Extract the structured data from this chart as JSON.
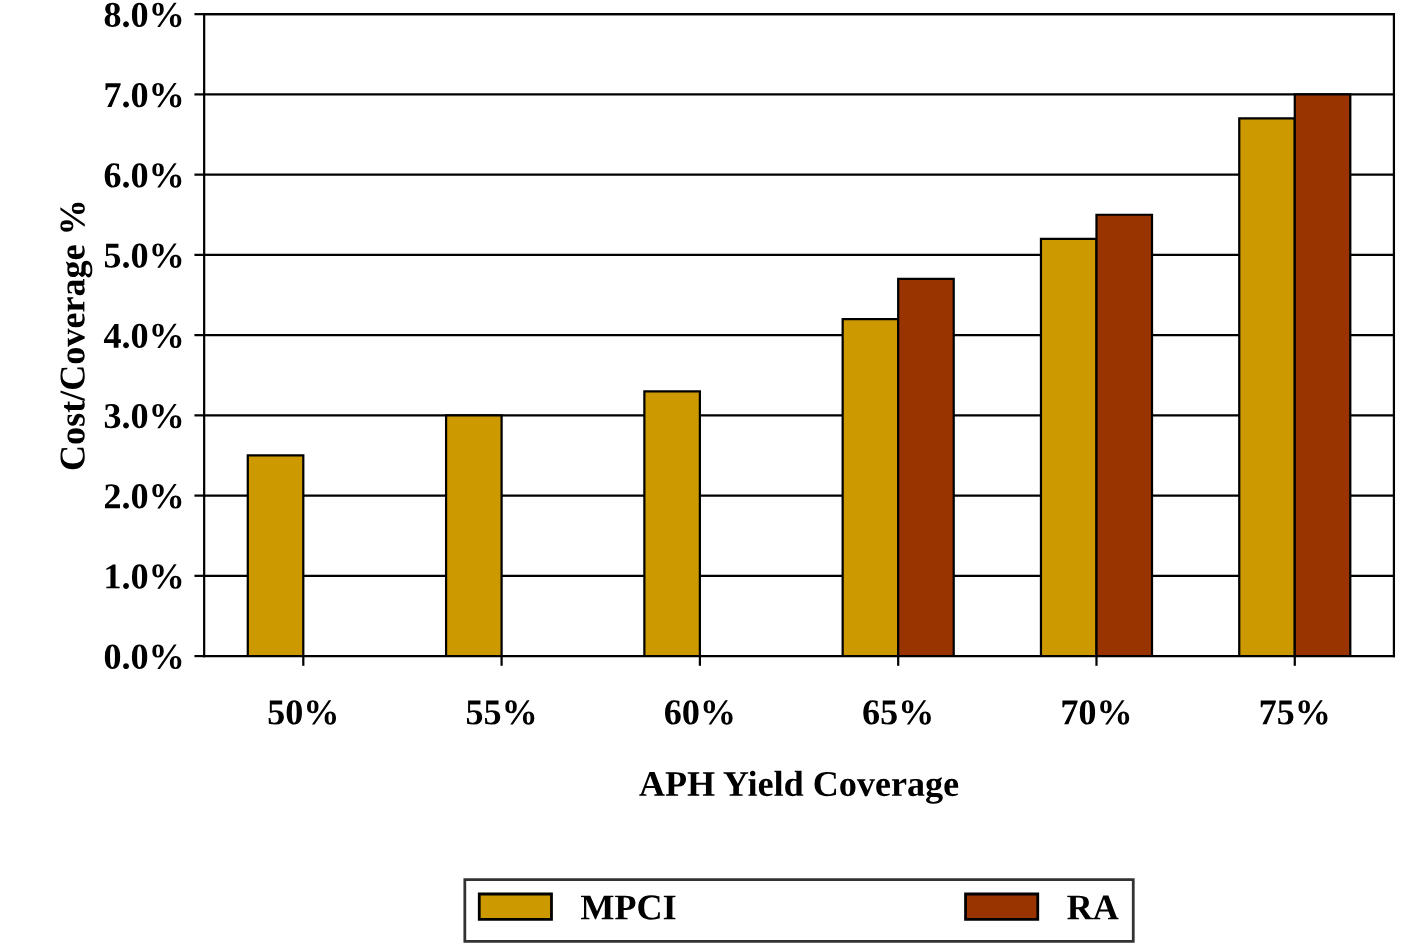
{
  "chart_data": {
    "type": "bar",
    "xlabel": "APH Yield Coverage",
    "ylabel": "Cost/Coverage %",
    "categories": [
      "50%",
      "55%",
      "60%",
      "65%",
      "70%",
      "75%"
    ],
    "series": [
      {
        "name": "MPCI",
        "color": "#cc9900",
        "values": [
          2.5,
          3.0,
          3.3,
          4.2,
          5.2,
          6.7
        ]
      },
      {
        "name": "RA",
        "color": "#993300",
        "values": [
          null,
          null,
          null,
          4.7,
          5.5,
          7.0
        ]
      }
    ],
    "ylim": [
      0,
      8
    ],
    "yticks": [
      {
        "value": 0,
        "label": "0.0%"
      },
      {
        "value": 1,
        "label": "1.0%"
      },
      {
        "value": 2,
        "label": "2.0%"
      },
      {
        "value": 3,
        "label": "3.0%"
      },
      {
        "value": 4,
        "label": "4.0%"
      },
      {
        "value": 5,
        "label": "5.0%"
      },
      {
        "value": 6,
        "label": "6.0%"
      },
      {
        "value": 7,
        "label": "7.0%"
      },
      {
        "value": 8,
        "label": "8.0%"
      }
    ],
    "grid": "y",
    "legend": "bottom"
  }
}
